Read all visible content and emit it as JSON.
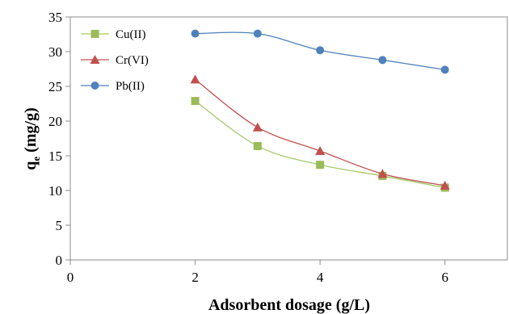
{
  "chart_data": {
    "type": "line",
    "title": "",
    "xlabel": "Adsorbent dosage (g/L)",
    "ylabel_main": "q",
    "ylabel_sub": "e",
    "ylabel_rest": " (mg/g)",
    "xlim": [
      0,
      7
    ],
    "ylim": [
      0,
      35
    ],
    "x_ticks": [
      0,
      2,
      4,
      6
    ],
    "y_ticks": [
      0,
      5,
      10,
      15,
      20,
      25,
      30,
      35
    ],
    "grid": false,
    "legend_position": "top-left",
    "series": [
      {
        "name": "Cu(II)",
        "color": "#9bbb59",
        "line_color": "#a6c96a",
        "marker": "square",
        "x": [
          2,
          3,
          4,
          5,
          6
        ],
        "y": [
          22.9,
          16.4,
          13.7,
          12.1,
          10.4
        ]
      },
      {
        "name": "Cr(VI)",
        "color": "#c0504d",
        "line_color": "#c0504d",
        "marker": "triangle",
        "x": [
          2,
          3,
          4,
          5,
          6
        ],
        "y": [
          26.0,
          19.1,
          15.7,
          12.4,
          10.7
        ]
      },
      {
        "name": "Pb(II)",
        "color": "#4f81bd",
        "line_color": "#4f81bd",
        "marker": "circle",
        "x": [
          2,
          3,
          4,
          5,
          6
        ],
        "y": [
          32.6,
          32.6,
          30.2,
          28.8,
          27.4
        ]
      }
    ]
  }
}
